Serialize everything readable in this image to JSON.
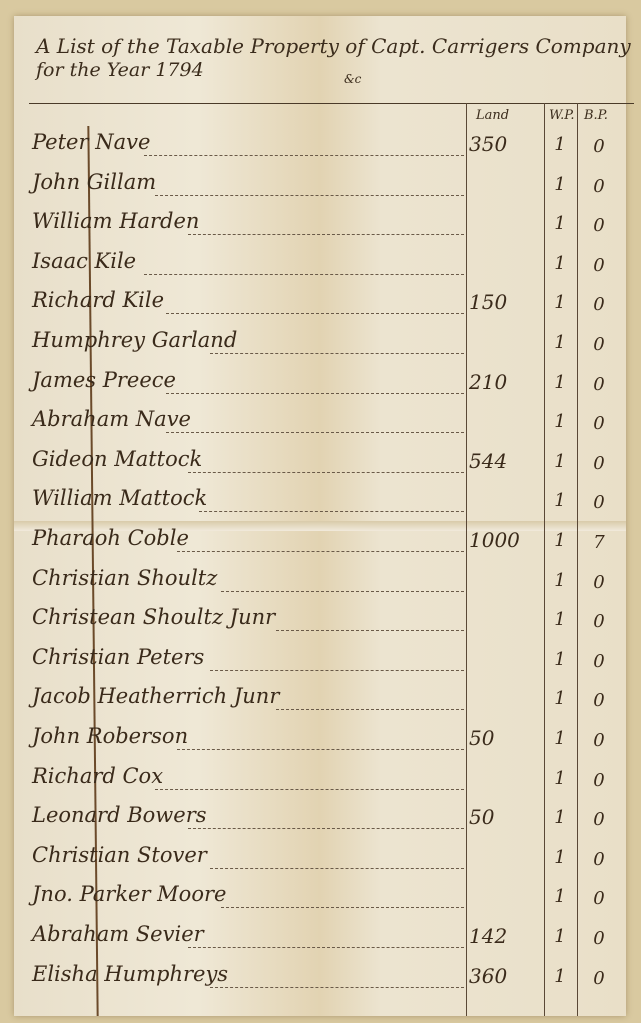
{
  "document": {
    "title_line1": "A List of the Taxable Property of Capt. Carrigers Company",
    "title_line2": "for the Year 1794",
    "title_mark": "&c",
    "columns": {
      "land": "Land",
      "white_polls": "W.P.",
      "black_polls": "B.P."
    },
    "rows": [
      {
        "name": "Peter Nave",
        "land": "350",
        "wp": "1",
        "bp": "0"
      },
      {
        "name": "John Gillam",
        "land": "",
        "wp": "1",
        "bp": "0"
      },
      {
        "name": "William Harden",
        "land": "",
        "wp": "1",
        "bp": "0"
      },
      {
        "name": "Isaac Kile",
        "land": "",
        "wp": "1",
        "bp": "0"
      },
      {
        "name": "Richard Kile",
        "land": "150",
        "wp": "1",
        "bp": "0"
      },
      {
        "name": "Humphrey Garland",
        "land": "",
        "wp": "1",
        "bp": "0"
      },
      {
        "name": "James Preece",
        "land": "210",
        "wp": "1",
        "bp": "0"
      },
      {
        "name": "Abraham Nave",
        "land": "",
        "wp": "1",
        "bp": "0"
      },
      {
        "name": "Gideon Mattock",
        "land": "544",
        "wp": "1",
        "bp": "0"
      },
      {
        "name": "William Mattock",
        "land": "",
        "wp": "1",
        "bp": "0"
      },
      {
        "name": "Pharaoh Coble",
        "land": "1000",
        "wp": "1",
        "bp": "7"
      },
      {
        "name": "Christian Shoultz",
        "land": "",
        "wp": "1",
        "bp": "0"
      },
      {
        "name": "Christean Shoultz Junr",
        "land": "",
        "wp": "1",
        "bp": "0"
      },
      {
        "name": "Christian Peters",
        "land": "",
        "wp": "1",
        "bp": "0"
      },
      {
        "name": "Jacob Heatherrich Junr",
        "land": "",
        "wp": "1",
        "bp": "0"
      },
      {
        "name": "John Roberson",
        "land": "50",
        "wp": "1",
        "bp": "0"
      },
      {
        "name": "Richard Cox",
        "land": "",
        "wp": "1",
        "bp": "0"
      },
      {
        "name": "Leonard Bowers",
        "land": "50",
        "wp": "1",
        "bp": "0"
      },
      {
        "name": "Christian Stover",
        "land": "",
        "wp": "1",
        "bp": "0"
      },
      {
        "name": "Jno. Parker Moore",
        "land": "",
        "wp": "1",
        "bp": "0"
      },
      {
        "name": "Abraham Sevier",
        "land": "142",
        "wp": "1",
        "bp": "0"
      },
      {
        "name": "Elisha Humphreys",
        "land": "360",
        "wp": "1",
        "bp": "0"
      }
    ]
  }
}
